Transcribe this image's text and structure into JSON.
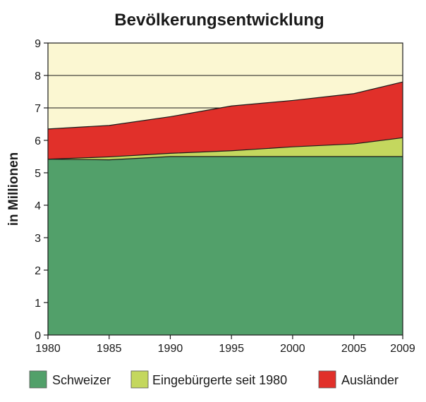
{
  "chart_data": {
    "type": "area",
    "stacked": true,
    "title": "Bevölkerungsentwicklung",
    "xlabel": "",
    "ylabel": "in Millionen",
    "x": [
      1980,
      1985,
      1990,
      1995,
      2000,
      2005,
      2009
    ],
    "xticks": [
      "1980",
      "1985",
      "1990",
      "1995",
      "2000",
      "2005",
      "2009"
    ],
    "yticks": [
      "0",
      "1",
      "2",
      "3",
      "4",
      "5",
      "6",
      "7",
      "8",
      "9"
    ],
    "xlim": [
      1980,
      2009
    ],
    "ylim": [
      0,
      9
    ],
    "grid": "horizontal",
    "legend_position": "bottom",
    "background_color": "#fbf7d2",
    "series": [
      {
        "name": "Schweizer",
        "color": "#52a06a",
        "values": [
          5.42,
          5.4,
          5.5,
          5.5,
          5.5,
          5.5,
          5.5
        ]
      },
      {
        "name": "Eingebürgerte seit 1980",
        "color": "#c4d75e",
        "values": [
          0.0,
          0.09,
          0.1,
          0.18,
          0.3,
          0.39,
          0.58
        ]
      },
      {
        "name": "Ausländer",
        "color": "#e1302a",
        "values": [
          0.93,
          0.97,
          1.13,
          1.38,
          1.43,
          1.55,
          1.72
        ]
      }
    ]
  }
}
